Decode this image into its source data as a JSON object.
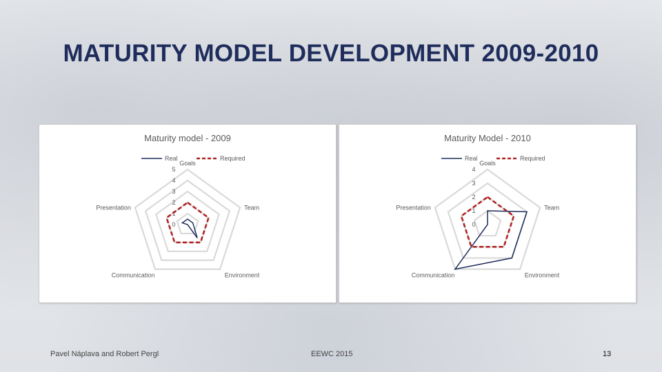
{
  "slide": {
    "title": "MATURITY MODEL DEVELOPMENT 2009-2010",
    "footer_authors": "Pavel Náplava and Robert Pergl",
    "footer_event": "EEWC 2015",
    "page_number": "13"
  },
  "colors": {
    "title": "#1f2d5c",
    "real": "#1f2d5c",
    "required": "#b22222",
    "grid": "#d9d9d9"
  },
  "chart_data": [
    {
      "type": "radar",
      "title": "Maturity model - 2009",
      "axes": [
        "Goals",
        "Team",
        "Environment",
        "Communication",
        "Presentation"
      ],
      "range": [
        0,
        5
      ],
      "ticks": [
        "0",
        "1",
        "2",
        "3",
        "4",
        "5"
      ],
      "legend_position": "top",
      "series": [
        {
          "name": "Real",
          "values": [
            0.5,
            0.5,
            1.5,
            0,
            0.5
          ],
          "style": "solid"
        },
        {
          "name": "Required",
          "values": [
            2,
            2,
            2,
            2,
            2
          ],
          "style": "dashed"
        }
      ]
    },
    {
      "type": "radar",
      "title": "Maturity Model - 2010",
      "axes": [
        "Goals",
        "Team",
        "Environment",
        "Communication",
        "Presentation"
      ],
      "range": [
        0,
        4
      ],
      "ticks": [
        "0",
        "1",
        "2",
        "3",
        "4"
      ],
      "legend_position": "top",
      "series": [
        {
          "name": "Real",
          "values": [
            1,
            3,
            3,
            4,
            0
          ],
          "style": "solid"
        },
        {
          "name": "Required",
          "values": [
            2,
            2,
            2,
            2,
            2
          ],
          "style": "dashed"
        }
      ]
    }
  ]
}
